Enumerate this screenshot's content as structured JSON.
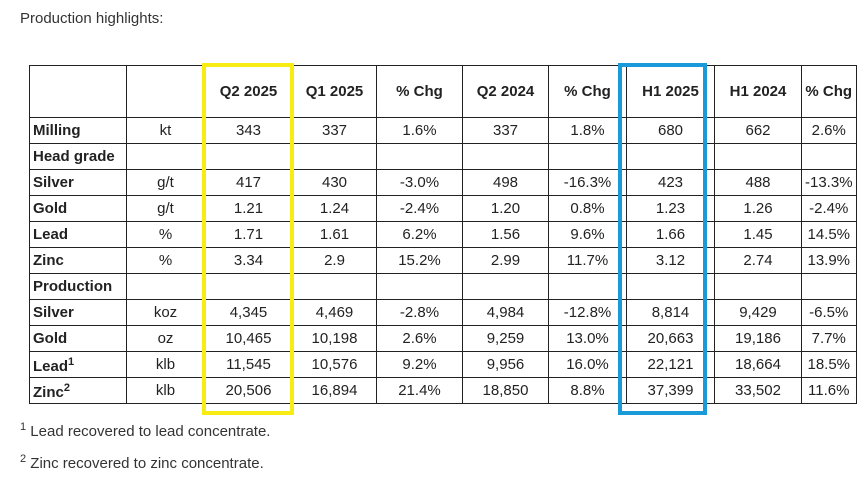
{
  "title": "Production highlights:",
  "columns": [
    "",
    "",
    "Q2 2025",
    "Q1 2025",
    "% Chg",
    "Q2 2024",
    "% Chg",
    "H1 2025",
    "H1 2024",
    "% Chg"
  ],
  "rows": [
    {
      "label": "Milling",
      "sup": "",
      "unit": "kt",
      "values": [
        "343",
        "337",
        "1.6%",
        "337",
        "1.8%",
        "680",
        "662",
        "2.6%"
      ]
    },
    {
      "label": "Head grade",
      "sup": "",
      "unit": "",
      "values": [
        "",
        "",
        "",
        "",
        "",
        "",
        "",
        ""
      ]
    },
    {
      "label": "Silver",
      "sup": "",
      "unit": "g/t",
      "values": [
        "417",
        "430",
        "-3.0%",
        "498",
        "-16.3%",
        "423",
        "488",
        "-13.3%"
      ]
    },
    {
      "label": "Gold",
      "sup": "",
      "unit": "g/t",
      "values": [
        "1.21",
        "1.24",
        "-2.4%",
        "1.20",
        "0.8%",
        "1.23",
        "1.26",
        "-2.4%"
      ]
    },
    {
      "label": "Lead",
      "sup": "",
      "unit": "%",
      "values": [
        "1.71",
        "1.61",
        "6.2%",
        "1.56",
        "9.6%",
        "1.66",
        "1.45",
        "14.5%"
      ]
    },
    {
      "label": "Zinc",
      "sup": "",
      "unit": "%",
      "values": [
        "3.34",
        "2.9",
        "15.2%",
        "2.99",
        "11.7%",
        "3.12",
        "2.74",
        "13.9%"
      ]
    },
    {
      "label": "Production",
      "sup": "",
      "unit": "",
      "values": [
        "",
        "",
        "",
        "",
        "",
        "",
        "",
        ""
      ]
    },
    {
      "label": "Silver",
      "sup": "",
      "unit": "koz",
      "values": [
        "4,345",
        "4,469",
        "-2.8%",
        "4,984",
        "-12.8%",
        "8,814",
        "9,429",
        "-6.5%"
      ]
    },
    {
      "label": "Gold",
      "sup": "",
      "unit": "oz",
      "values": [
        "10,465",
        "10,198",
        "2.6%",
        "9,259",
        "13.0%",
        "20,663",
        "19,186",
        "7.7%"
      ]
    },
    {
      "label": "Lead",
      "sup": "1",
      "unit": "klb",
      "values": [
        "11,545",
        "10,576",
        "9.2%",
        "9,956",
        "16.0%",
        "22,121",
        "18,664",
        "18.5%"
      ]
    },
    {
      "label": "Zinc",
      "sup": "2",
      "unit": "klb",
      "values": [
        "20,506",
        "16,894",
        "21.4%",
        "18,850",
        "8.8%",
        "37,399",
        "33,502",
        "11.6%"
      ]
    }
  ],
  "footnotes": [
    {
      "mark": "1",
      "text": "Lead recovered to lead concentrate."
    },
    {
      "mark": "2",
      "text": "Zinc recovered to zinc concentrate."
    }
  ],
  "highlight_colors": {
    "q2_2025": "#f7ec13",
    "h1_2025": "#1a9ad9"
  }
}
